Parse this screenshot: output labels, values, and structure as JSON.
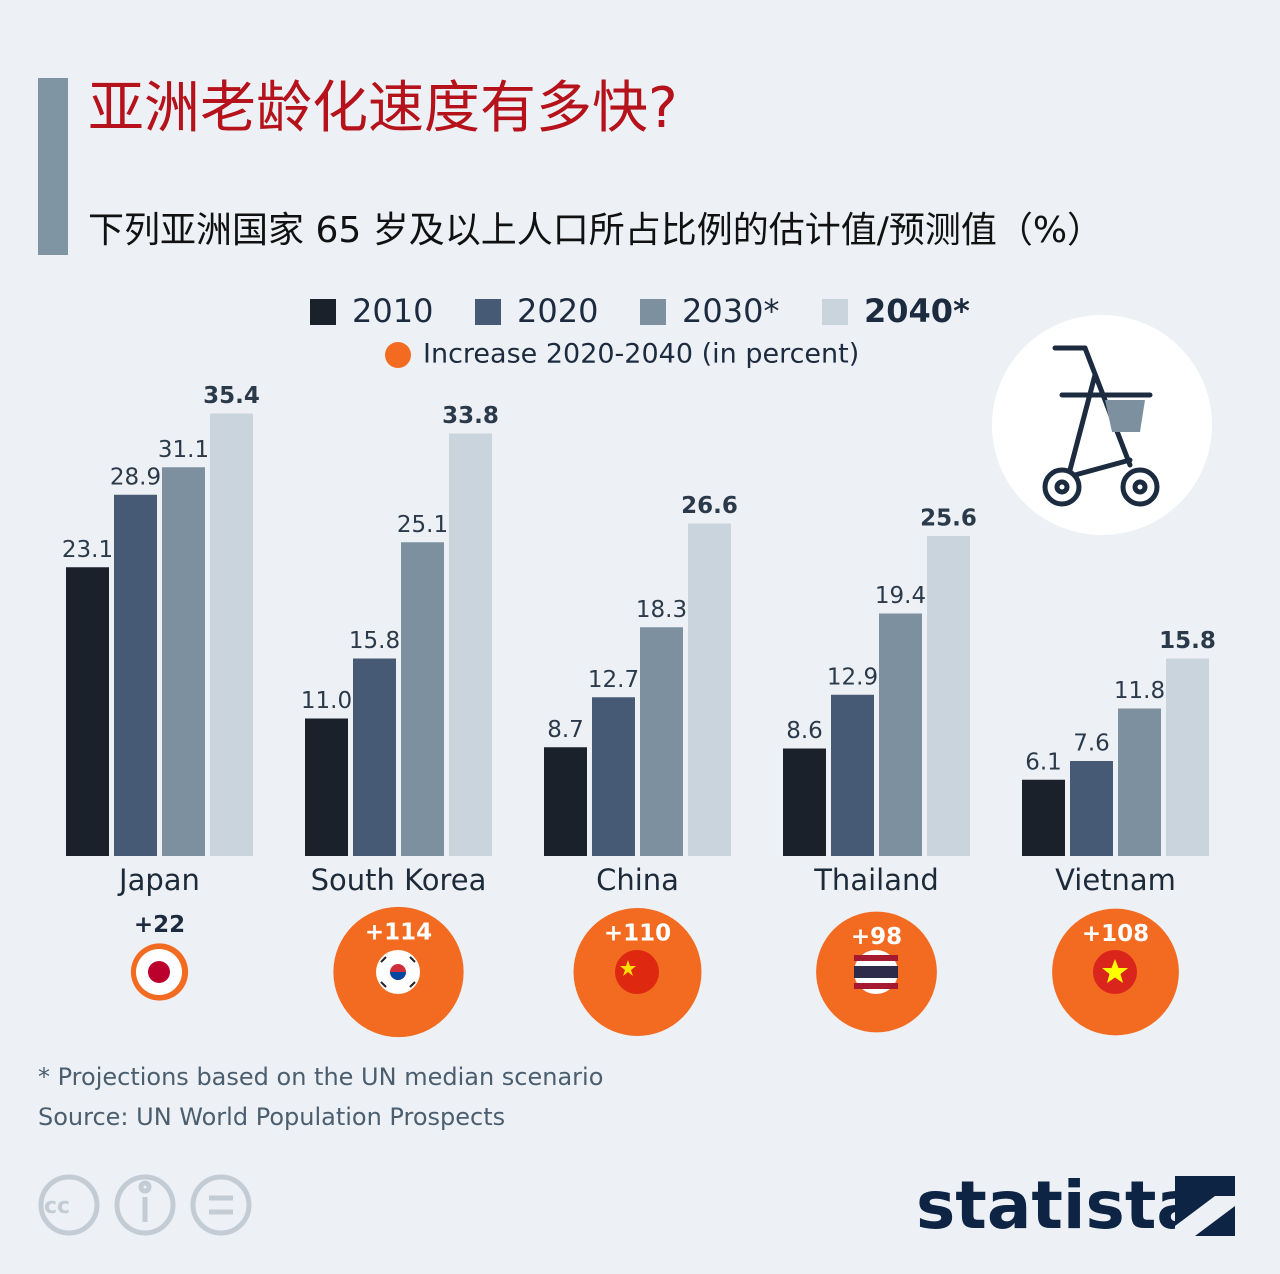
{
  "title": "亚洲老龄化速度有多快?",
  "subtitle": "下列亚洲国家 65 岁及以上人口所占比例的估计值/预测值（%）",
  "chart_data": {
    "type": "bar",
    "categories": [
      "Japan",
      "South Korea",
      "China",
      "Thailand",
      "Vietnam"
    ],
    "series": [
      {
        "name": "2010",
        "color": "#1a212b",
        "values": [
          23.1,
          11.0,
          8.7,
          8.6,
          6.1
        ],
        "value_labels": [
          "23.1",
          "11.0",
          "8.7",
          "8.6",
          "6.1"
        ]
      },
      {
        "name": "2020",
        "color": "#465a75",
        "values": [
          28.9,
          15.8,
          12.7,
          12.9,
          7.6
        ],
        "value_labels": [
          "28.9",
          "15.8",
          "12.7",
          "12.9",
          "7.6"
        ]
      },
      {
        "name": "2030*",
        "color": "#7d909f",
        "values": [
          31.1,
          25.1,
          18.3,
          19.4,
          11.8
        ],
        "value_labels": [
          "31.1",
          "25.1",
          "18.3",
          "19.4",
          "11.8"
        ]
      },
      {
        "name": "2040*",
        "color": "#c9d4dc",
        "values": [
          35.4,
          33.8,
          26.6,
          25.6,
          15.8
        ],
        "value_labels": [
          "35.4",
          "33.8",
          "26.6",
          "25.6",
          "15.8"
        ]
      }
    ],
    "increase": {
      "name": "Increase 2020-2040 (in percent)",
      "color": "#f26b21",
      "values": [
        22,
        114,
        110,
        98,
        108
      ],
      "value_labels": [
        "+22",
        "+114",
        "+110",
        "+98",
        "+108"
      ]
    }
  },
  "footnote": "* Projections based on the UN median scenario",
  "source": "Source: UN World Population Prospects",
  "brand": "statista"
}
